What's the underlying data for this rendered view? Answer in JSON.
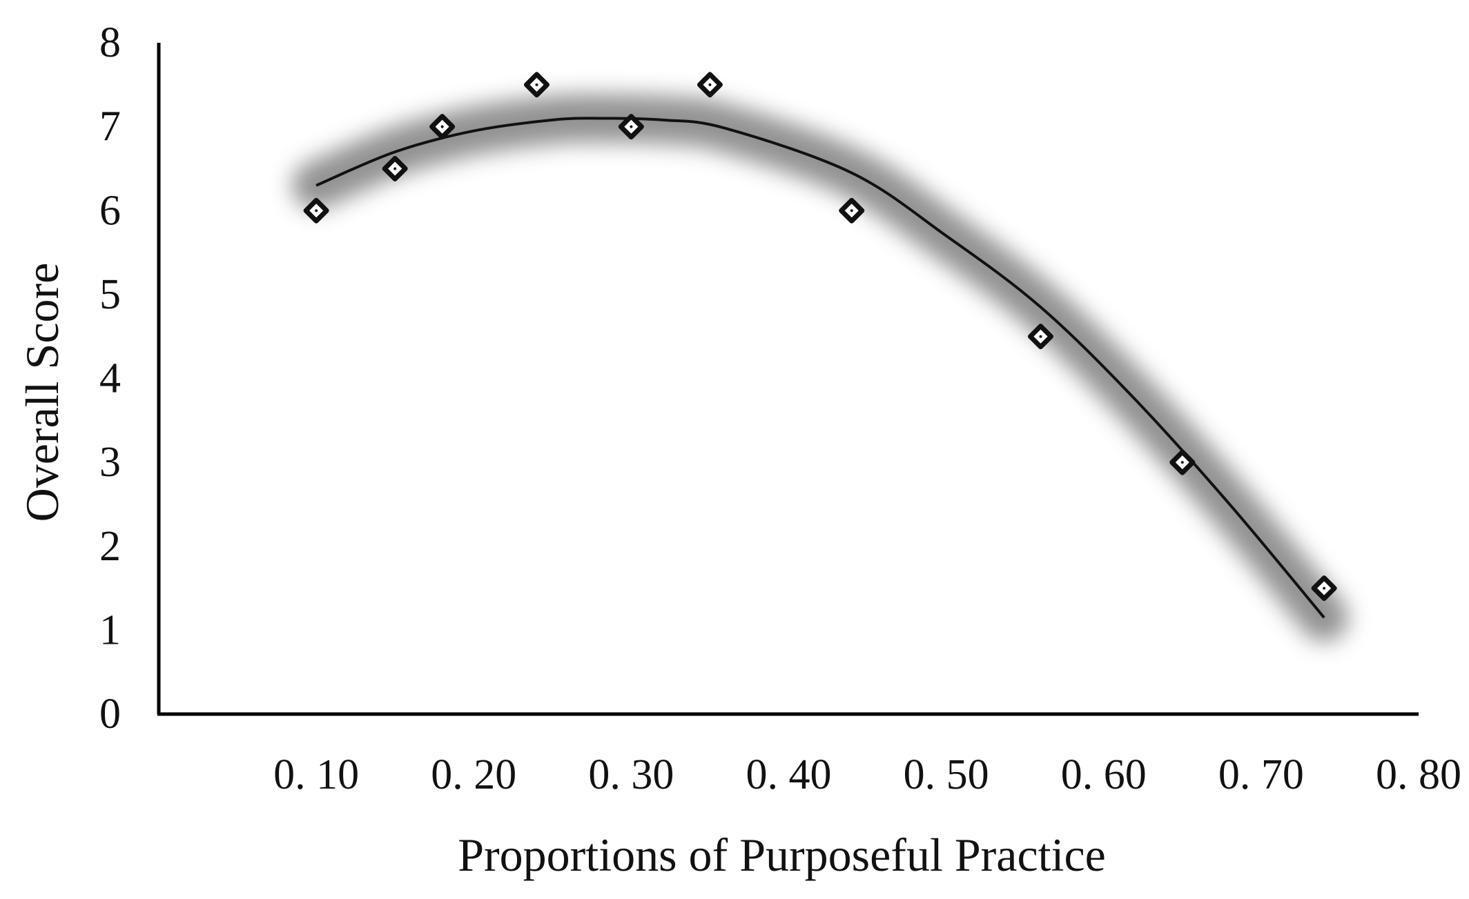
{
  "chart_data": {
    "type": "scatter",
    "xlabel": "Proportions of Purposeful Practice",
    "ylabel": "Overall Score",
    "xlim": [
      0.0,
      0.8
    ],
    "ylim": [
      0,
      8
    ],
    "x_ticks": [
      0.1,
      0.2,
      0.3,
      0.4,
      0.5,
      0.6,
      0.7,
      0.8
    ],
    "x_tick_labels": [
      "0. 10",
      "0. 20",
      "0. 30",
      "0. 40",
      "0. 50",
      "0. 60",
      "0. 70",
      "0. 80"
    ],
    "y_ticks": [
      0,
      1,
      2,
      3,
      4,
      5,
      6,
      7,
      8
    ],
    "y_tick_labels": [
      "0",
      "1",
      "2",
      "3",
      "4",
      "5",
      "6",
      "7",
      "8"
    ],
    "grid": false,
    "marker": "diamond",
    "series": [
      {
        "points": [
          {
            "x": 0.1,
            "y": 6.0
          },
          {
            "x": 0.15,
            "y": 6.5
          },
          {
            "x": 0.18,
            "y": 7.0
          },
          {
            "x": 0.24,
            "y": 7.5
          },
          {
            "x": 0.3,
            "y": 7.0
          },
          {
            "x": 0.35,
            "y": 7.5
          },
          {
            "x": 0.44,
            "y": 6.0
          },
          {
            "x": 0.56,
            "y": 4.5
          },
          {
            "x": 0.65,
            "y": 3.0
          },
          {
            "x": 0.74,
            "y": 1.5
          }
        ]
      }
    ],
    "trendline": {
      "type": "polynomial-2",
      "x_range": [
        0.1,
        0.74
      ],
      "points": [
        {
          "x": 0.1,
          "y": 6.3
        },
        {
          "x": 0.15,
          "y": 6.7
        },
        {
          "x": 0.2,
          "y": 6.95
        },
        {
          "x": 0.25,
          "y": 7.08
        },
        {
          "x": 0.28,
          "y": 7.1
        },
        {
          "x": 0.32,
          "y": 7.08
        },
        {
          "x": 0.36,
          "y": 6.98
        },
        {
          "x": 0.44,
          "y": 6.45
        },
        {
          "x": 0.5,
          "y": 5.7
        },
        {
          "x": 0.56,
          "y": 4.85
        },
        {
          "x": 0.62,
          "y": 3.75
        },
        {
          "x": 0.68,
          "y": 2.5
        },
        {
          "x": 0.74,
          "y": 1.15
        }
      ]
    },
    "colors": {
      "marker": "#111111",
      "trendline": "#111111",
      "trendline_glow": "#6e6e6e",
      "axis": "#000000"
    }
  }
}
